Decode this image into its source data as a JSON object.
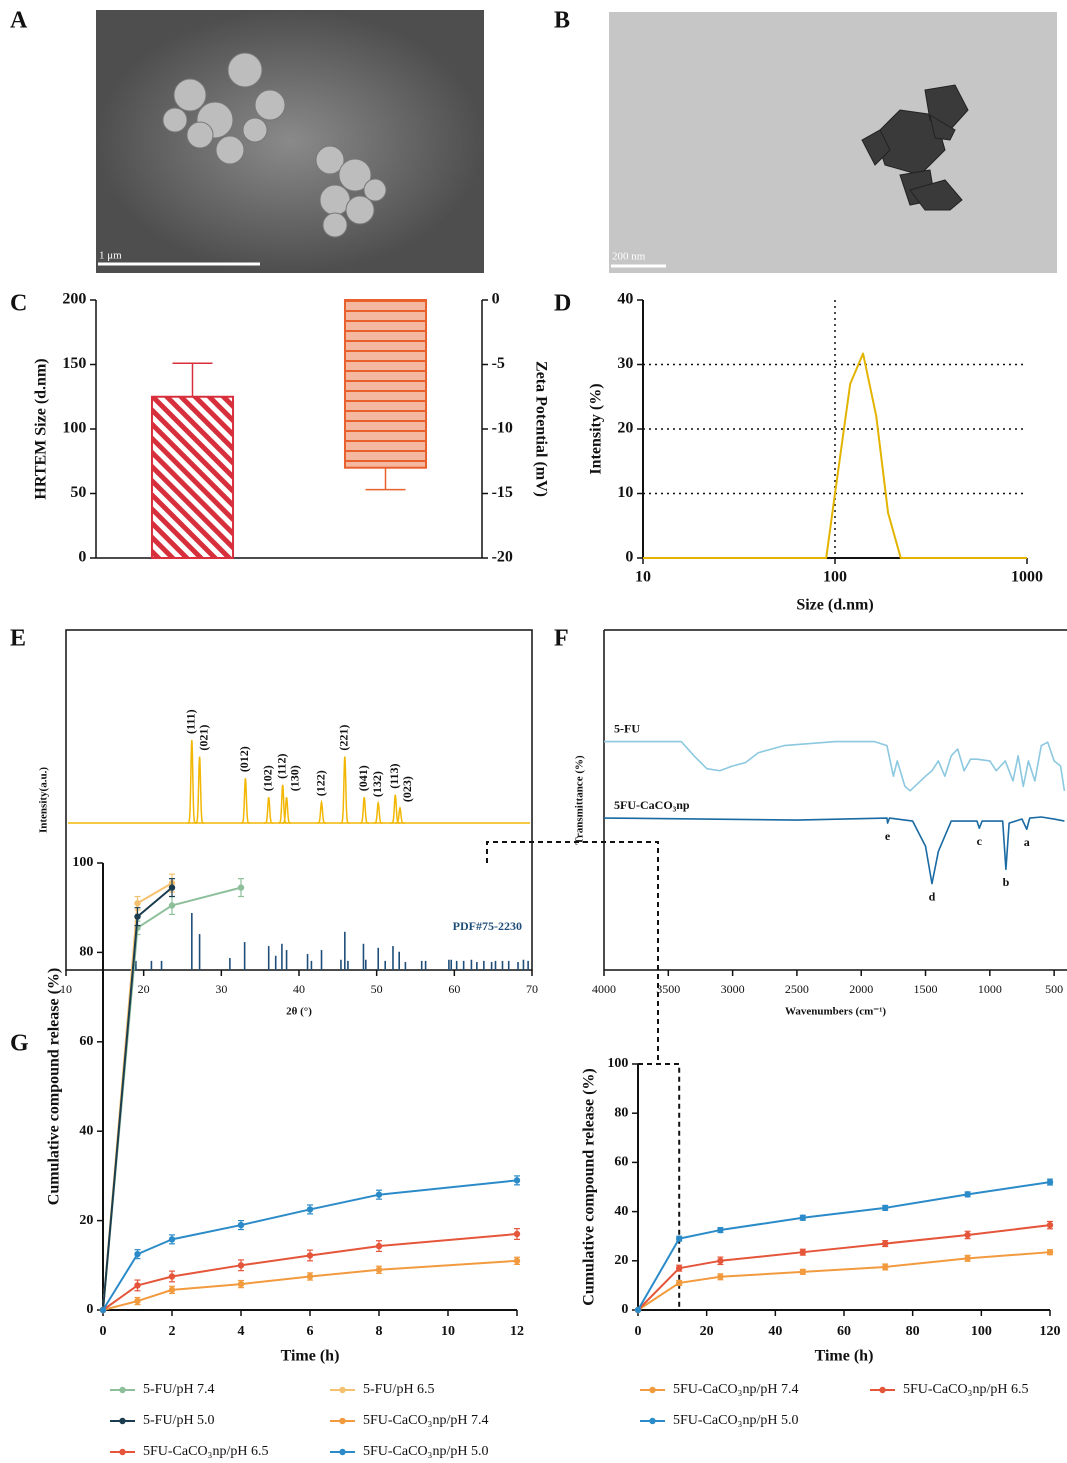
{
  "images": [
    {
      "panel": "A",
      "scale_bar": "1 μm"
    },
    {
      "panel": "B",
      "scale_bar": "200 nm"
    }
  ],
  "chart_data": [
    {
      "panel": "C",
      "type": "bar",
      "y_label": "HRTEM Size (d.nm)",
      "y2_label": "Zeta Potential (mV)",
      "ylim": [
        0,
        200
      ],
      "yticks": [
        0,
        50,
        100,
        150,
        200
      ],
      "y2lim": [
        -20,
        0
      ],
      "y2ticks": [
        -20,
        -15,
        -10,
        -5,
        0
      ],
      "series": [
        {
          "color": "#d7303c",
          "hatch": "diagonal",
          "values": [
            125
          ],
          "errors": [
            26
          ]
        },
        {
          "color": "#e8602c",
          "hatch": "horizontal",
          "axis": "y2",
          "values": [
            -13
          ],
          "errors": [
            1.7
          ]
        }
      ]
    },
    {
      "panel": "D",
      "type": "line",
      "x_label": "Size (d.nm)",
      "y_label": "Intensity (%)",
      "xscale": "log",
      "xlim": [
        10,
        1000
      ],
      "xticks": [
        10,
        100,
        1000
      ],
      "ylim": [
        0,
        40
      ],
      "yticks": [
        0,
        10,
        20,
        30,
        40
      ],
      "grid": "dotted",
      "series": [
        {
          "color": "#e2b400",
          "x": [
            10,
            90,
            100,
            120,
            140,
            164,
            189,
            220,
            1000
          ],
          "values": [
            0,
            0,
            10,
            27,
            31.7,
            22,
            7,
            0,
            0
          ]
        }
      ]
    },
    {
      "panel": "E",
      "type": "diffraction",
      "x_label": "2θ (°)",
      "y_label": "Intensity(a.u.)",
      "xlim": [
        10,
        70
      ],
      "xticks": [
        10,
        20,
        30,
        40,
        50,
        60,
        70
      ],
      "ylim": [
        0,
        100
      ],
      "series": [
        {
          "color": "#f2b705",
          "x": [
            26.2,
            27.2,
            33.1,
            36.1,
            37.9,
            38.4,
            42.9,
            45.9,
            48.4,
            50.2,
            52.4,
            53.0
          ],
          "values": [
            100,
            80,
            54,
            31,
            46,
            31,
            25,
            80,
            31,
            24,
            34,
            18
          ],
          "labels": [
            "(111)",
            "(021)",
            "(012)",
            "(102)",
            "(112)",
            "(130)",
            "(122)",
            "(221)",
            "(041)",
            "(132)",
            "(113)",
            "(023)"
          ]
        }
      ],
      "reference": {
        "name": "PDF#75-2230",
        "color": "#1f4e79",
        "x": [
          19,
          21,
          22.3,
          26.2,
          27.2,
          31.1,
          33.0,
          36.1,
          37.0,
          37.8,
          38.4,
          41.1,
          41.6,
          42.9,
          45.4,
          45.9,
          46.3,
          48.3,
          48.6,
          50.2,
          51.1,
          52.1,
          52.9,
          53.7,
          55.8,
          56.3,
          59.3,
          59.6,
          60.3,
          61.2,
          62.2,
          62.9,
          63.8,
          64.8,
          65.3,
          66.2,
          67.0,
          68.2,
          68.9,
          69.5
        ],
        "values": [
          16,
          16,
          16,
          100,
          63,
          21,
          49,
          42,
          25,
          46,
          35,
          28,
          16,
          35,
          18,
          67,
          16,
          46,
          18,
          39,
          16,
          42,
          32,
          14,
          16,
          16,
          18,
          18,
          16,
          16,
          18,
          14,
          16,
          14,
          16,
          16,
          16,
          14,
          18,
          16
        ]
      }
    },
    {
      "panel": "F",
      "type": "spectrum",
      "x_label": "Wavenumbers (cm⁻¹)",
      "y_label": "Transmittance (%)",
      "xlim": [
        4000,
        400
      ],
      "xticks": [
        4000,
        3500,
        3000,
        2500,
        2000,
        1500,
        1000,
        500
      ],
      "ylim": [
        0,
        100
      ],
      "series": [
        {
          "name": "5-FU",
          "color": "#8cc8e0",
          "x": [
            4000,
            3400,
            3300,
            3200,
            3100,
            3000,
            2900,
            2800,
            2600,
            2200,
            1900,
            1800,
            1750,
            1720,
            1660,
            1620,
            1500,
            1450,
            1400,
            1350,
            1300,
            1250,
            1200,
            1150,
            1100,
            1000,
            950,
            880,
            820,
            780,
            740,
            700,
            650,
            600,
            550,
            500,
            450,
            420
          ],
          "values": [
            67.2,
            67.2,
            63,
            59.2,
            58.6,
            60,
            61,
            63.9,
            66,
            67.2,
            67.2,
            66,
            57,
            61.5,
            54,
            52.7,
            57,
            58.6,
            61.5,
            57,
            63,
            65,
            58.6,
            62,
            62,
            61.5,
            58.6,
            61.5,
            55.6,
            63,
            54,
            61.5,
            55.6,
            66,
            67,
            61.5,
            60,
            52.7
          ]
        },
        {
          "name": "5FU-CaCO₃np",
          "color": "#1a6aa3",
          "x": [
            4000,
            2500,
            1800,
            1795,
            1780,
            1600,
            1500,
            1450,
            1400,
            1300,
            1100,
            1082,
            1060,
            900,
            875,
            850,
            750,
            713,
            690,
            600,
            500,
            420
          ],
          "values": [
            44.7,
            44.1,
            44.7,
            43.2,
            44.7,
            43.8,
            36.4,
            25.4,
            34.9,
            43.8,
            43.8,
            41.7,
            43.8,
            43.8,
            29.6,
            43.2,
            44.4,
            41.4,
            44.7,
            45,
            44.4,
            43.8
          ]
        }
      ],
      "annotations": [
        {
          "text": "a",
          "x": 713
        },
        {
          "text": "b",
          "x": 875
        },
        {
          "text": "c",
          "x": 1082
        },
        {
          "text": "d",
          "x": 1450
        },
        {
          "text": "e",
          "x": 1795
        }
      ]
    },
    {
      "panel": "G",
      "type": "line",
      "x_label": "Time (h)",
      "y_label": "Cumulative compound release (%)",
      "xlim": [
        0,
        12
      ],
      "xticks": [
        0,
        2,
        4,
        6,
        8,
        10,
        12
      ],
      "ylim": [
        0,
        100
      ],
      "yticks": [
        0,
        20,
        40,
        60,
        80,
        100
      ],
      "legend": "bottom",
      "series": [
        {
          "name": "5-FU/pH 7.4",
          "color": "#8dbf9b",
          "x": [
            0,
            1,
            2,
            4
          ],
          "values": [
            0,
            85.5,
            90.5,
            94.5
          ],
          "errors": [
            0,
            1.5,
            2,
            2
          ]
        },
        {
          "name": "5-FU/pH 6.5",
          "color": "#f6c16f",
          "x": [
            0,
            1,
            2
          ],
          "values": [
            0,
            91,
            95.5
          ],
          "errors": [
            0,
            1.5,
            2
          ]
        },
        {
          "name": "5-FU/pH 5.0",
          "color": "#1c3d4f",
          "x": [
            0,
            1,
            2
          ],
          "values": [
            0,
            88,
            94.5
          ],
          "errors": [
            0,
            2,
            2
          ]
        },
        {
          "name": "5FU-CaCO₃np/pH 7.4",
          "color": "#f29a3e",
          "x": [
            0,
            1,
            2,
            4,
            6,
            8,
            12
          ],
          "values": [
            0,
            2,
            4.5,
            5.8,
            7.5,
            9,
            11
          ],
          "errors": [
            0,
            0.8,
            0.8,
            0.8,
            0.8,
            0.8,
            0.8
          ]
        },
        {
          "name": "5FU-CaCO₃np/pH 6.5",
          "color": "#e4553a",
          "x": [
            0,
            1,
            2,
            4,
            6,
            8,
            12
          ],
          "values": [
            0,
            5.5,
            7.5,
            10,
            12.2,
            14.3,
            17
          ],
          "errors": [
            0,
            1.2,
            1.2,
            1.2,
            1.2,
            1.2,
            1.2
          ]
        },
        {
          "name": "5FU-CaCO₃np/pH 5.0",
          "color": "#2b8bc8",
          "x": [
            0,
            1,
            2,
            4,
            6,
            8,
            12
          ],
          "values": [
            0,
            12.5,
            15.8,
            19,
            22.5,
            25.8,
            29
          ],
          "errors": [
            0,
            1,
            1,
            1,
            1,
            1,
            1
          ]
        }
      ]
    },
    {
      "type": "line",
      "x_label": "Time (h)",
      "y_label": "Cumulative compound release (%)",
      "xlim": [
        0,
        120
      ],
      "xticks": [
        0,
        20,
        40,
        60,
        80,
        100,
        120
      ],
      "ylim": [
        0,
        100
      ],
      "yticks": [
        0,
        20,
        40,
        60,
        80,
        100
      ],
      "legend": "bottom",
      "series": [
        {
          "name": "5FU-CaCO₃np/pH 7.4",
          "color": "#f29a3e",
          "x": [
            0,
            12,
            24,
            48,
            72,
            96,
            120
          ],
          "values": [
            0,
            11,
            13.5,
            15.5,
            17.5,
            21,
            23.5
          ],
          "errors": [
            0,
            1,
            1.2,
            1,
            1.2,
            1.2,
            1
          ]
        },
        {
          "name": "5FU-CaCO₃np/pH 6.5",
          "color": "#e4553a",
          "x": [
            0,
            12,
            24,
            48,
            72,
            96,
            120
          ],
          "values": [
            0,
            17,
            20,
            23.5,
            27,
            30.5,
            34.5
          ],
          "errors": [
            0,
            1.2,
            1.5,
            1.2,
            1.2,
            1.5,
            1.5
          ]
        },
        {
          "name": "5FU-CaCO₃np/pH 5.0",
          "color": "#2b8bc8",
          "x": [
            0,
            12,
            24,
            48,
            72,
            96,
            120
          ],
          "values": [
            0,
            29,
            32.5,
            37.5,
            41.5,
            47,
            52
          ],
          "errors": [
            0,
            1,
            1,
            1,
            1,
            1,
            1.2
          ]
        }
      ]
    }
  ]
}
